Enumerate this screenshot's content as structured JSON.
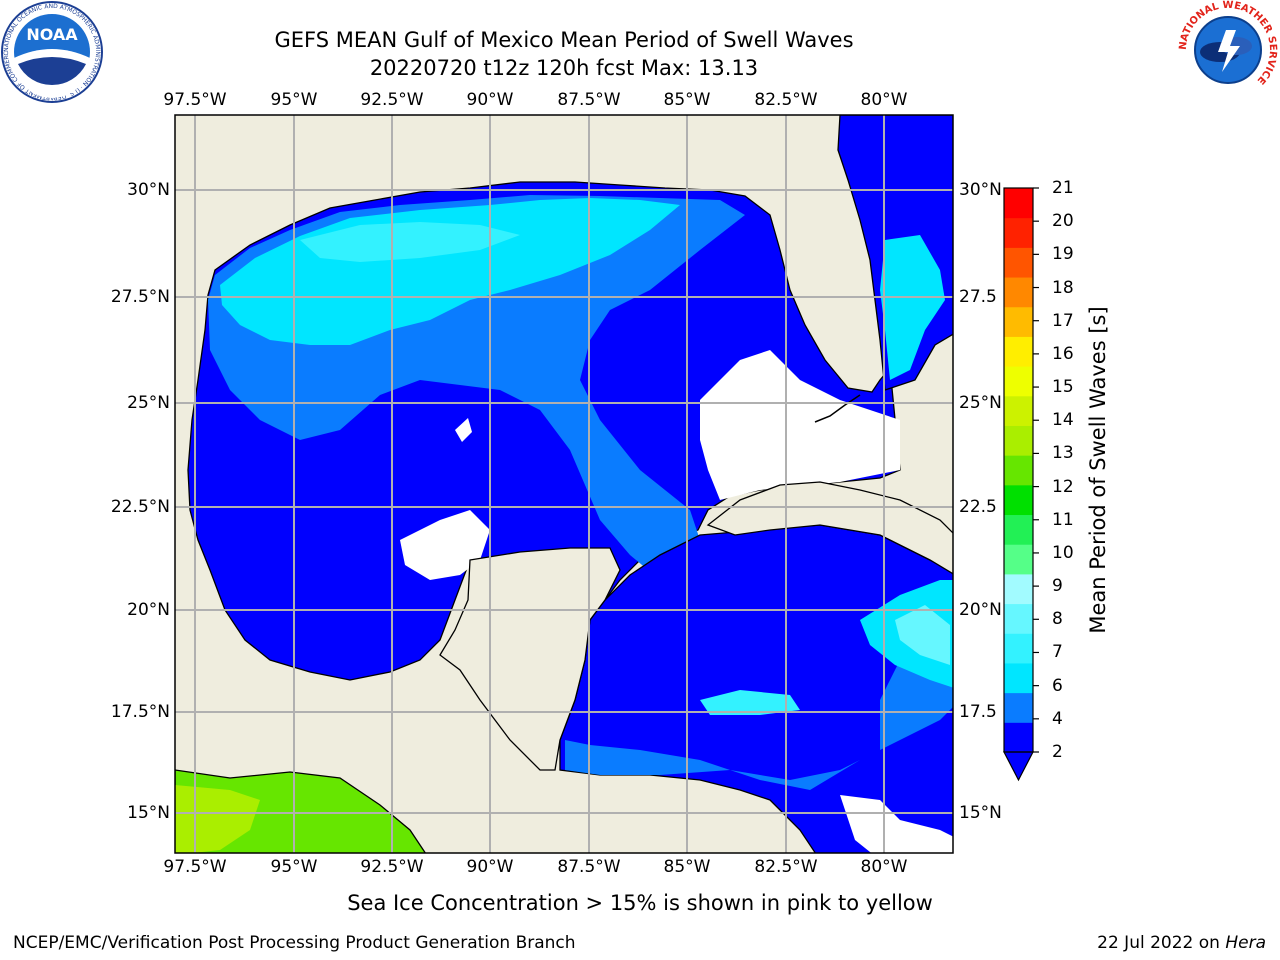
{
  "header": {
    "title_line1": "GEFS MEAN Gulf of Mexico Mean Period of Swell Waves",
    "title_line2": "20220720 t12z 120h fcst   Max: 13.13"
  },
  "map": {
    "lon_labels": [
      "97.5°W",
      "95°W",
      "92.5°W",
      "90°W",
      "87.5°W",
      "85°W",
      "82.5°W",
      "80°W"
    ],
    "lat_labels_left": [
      "30°N",
      "27.5°N",
      "25°N",
      "22.5°N",
      "20°N",
      "17.5°N",
      "15°N"
    ],
    "lat_labels_right": [
      "30°N",
      "27.5",
      "25°N",
      "22.5",
      "20°N",
      "17.5",
      "15°N"
    ],
    "land_color": "#efedde",
    "ocean_no_data_color": "#ffffff"
  },
  "colorbar": {
    "title": "Mean Period of Swell Waves [s]",
    "tick_labels": [
      "2",
      "4",
      "6",
      "7",
      "8",
      "9",
      "10",
      "11",
      "12",
      "13",
      "14",
      "15",
      "16",
      "17",
      "18",
      "19",
      "20",
      "21"
    ],
    "colors": [
      "#0000ff",
      "#0a7cff",
      "#00e6ff",
      "#33f2ff",
      "#66f7ff",
      "#a2fbff",
      "#55ff88",
      "#22f055",
      "#00e000",
      "#66e600",
      "#aaee00",
      "#ccf200",
      "#eeff00",
      "#ffee00",
      "#ffbb00",
      "#ff8800",
      "#ff5500",
      "#ff2200",
      "#ff0000"
    ],
    "extend": "min"
  },
  "footer": {
    "subtitle": "Sea Ice Concentration > 15% is shown in pink to yellow",
    "credit_left": "NCEP/EMC/Verification Post Processing Product Generation Branch",
    "credit_date": "22 Jul 2022 on ",
    "credit_host": "Hera"
  },
  "logos": {
    "noaa_text": "NOAA",
    "noaa_ring": "NATIONAL OCEANIC AND ATMOSPHERIC ADMINISTRATION · U.S. DEPARTMENT OF COMMERCE",
    "nws_ring": "NATIONAL WEATHER SERVICE"
  }
}
